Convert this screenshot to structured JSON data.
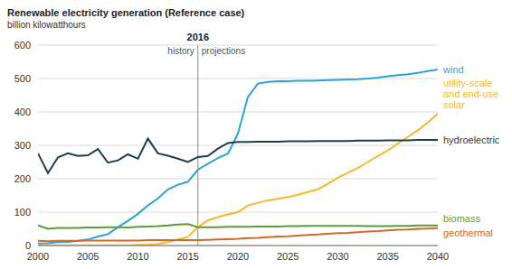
{
  "chart_data": {
    "type": "line",
    "title": "Renewable electricity generation (Reference case)",
    "subtitle": "billion kilowatthours",
    "x": [
      2000,
      2001,
      2002,
      2003,
      2004,
      2005,
      2006,
      2007,
      2008,
      2009,
      2010,
      2011,
      2012,
      2013,
      2014,
      2015,
      2016,
      2017,
      2018,
      2019,
      2020,
      2021,
      2022,
      2023,
      2024,
      2025,
      2026,
      2027,
      2028,
      2029,
      2030,
      2031,
      2032,
      2033,
      2034,
      2035,
      2036,
      2037,
      2038,
      2039,
      2040
    ],
    "series": [
      {
        "name": "wind",
        "color": "#2ba3d8",
        "values": [
          6,
          7,
          10,
          11,
          14,
          18,
          27,
          34,
          55,
          74,
          95,
          120,
          141,
          168,
          182,
          191,
          227,
          245,
          262,
          275,
          335,
          445,
          485,
          490,
          492,
          492,
          493,
          493,
          494,
          495,
          496,
          497,
          498,
          500,
          503,
          507,
          510,
          513,
          517,
          522,
          527
        ]
      },
      {
        "name": "utility-scale and end-use solar",
        "color": "#f5b82e",
        "values": [
          0.5,
          0.5,
          0.5,
          0.5,
          0.5,
          0.5,
          0.5,
          0.5,
          0.5,
          0.5,
          2,
          3,
          5,
          10,
          18,
          26,
          55,
          75,
          85,
          93,
          100,
          120,
          128,
          135,
          140,
          145,
          152,
          160,
          168,
          185,
          203,
          218,
          232,
          250,
          268,
          285,
          305,
          325,
          345,
          368,
          395
        ]
      },
      {
        "name": "hydroelectric",
        "color": "#1f3d4f",
        "values": [
          276,
          217,
          264,
          276,
          268,
          270,
          289,
          248,
          255,
          273,
          260,
          320,
          276,
          269,
          260,
          250,
          265,
          268,
          290,
          307,
          310,
          310,
          311,
          311,
          311,
          312,
          312,
          312,
          313,
          313,
          313,
          313,
          314,
          314,
          314,
          315,
          315,
          315,
          316,
          316,
          316
        ]
      },
      {
        "name": "biomass",
        "color": "#5c9a3c",
        "values": [
          60,
          50,
          53,
          53,
          53,
          54,
          54,
          55,
          55,
          54,
          56,
          57,
          58,
          60,
          63,
          64,
          55,
          55,
          55,
          56,
          56,
          56,
          57,
          57,
          57,
          58,
          58,
          59,
          59,
          59,
          59,
          59,
          59,
          58,
          58,
          58,
          59,
          59,
          60,
          60,
          60
        ]
      },
      {
        "name": "geothermal",
        "color": "#d0692b",
        "values": [
          14,
          13,
          14,
          14,
          14,
          15,
          15,
          15,
          15,
          15,
          15,
          16,
          16,
          16,
          16,
          16,
          16,
          17,
          18,
          19,
          20,
          22,
          23,
          25,
          27,
          28,
          30,
          32,
          33,
          35,
          37,
          38,
          40,
          42,
          43,
          45,
          47,
          48,
          50,
          51,
          52
        ]
      }
    ],
    "xlim": [
      2000,
      2040
    ],
    "xticks": [
      2000,
      2005,
      2010,
      2015,
      2020,
      2025,
      2030,
      2035,
      2040
    ],
    "ylim": [
      0,
      600
    ],
    "yticks": [
      0,
      100,
      200,
      300,
      400,
      500,
      600
    ],
    "grid": true,
    "reference_line": {
      "x": 2016,
      "label": "2016"
    },
    "annotations": [
      "history",
      "projections"
    ]
  }
}
